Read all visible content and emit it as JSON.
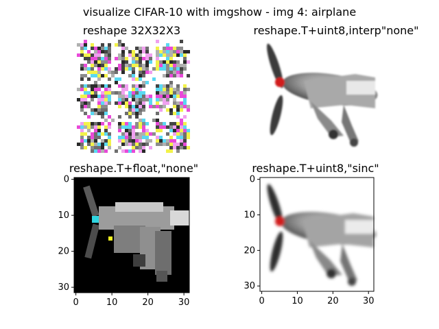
{
  "figure": {
    "suptitle": "visualize CIFAR-10 with imgshow - img 4: airplane"
  },
  "chart_data": [
    {
      "type": "image",
      "title": "reshape 32X32X3",
      "axes_visible": false,
      "description_grid": "3x3 tiled scrambled copies"
    },
    {
      "type": "image",
      "title": "reshape.T+uint8,interp\"none\"",
      "axes_visible": false
    },
    {
      "type": "image",
      "title": "reshape.T+float,\"none\"",
      "axes_visible": true,
      "xlim": [
        0,
        31
      ],
      "ylim": [
        31,
        0
      ],
      "xticks": [
        0,
        10,
        20,
        30
      ],
      "yticks": [
        0,
        10,
        20,
        30
      ],
      "background": "#000000"
    },
    {
      "type": "image",
      "title": "reshape.T+uint8,\"sinc\"",
      "axes_visible": true,
      "xlim": [
        0,
        31
      ],
      "ylim": [
        31,
        0
      ],
      "xticks": [
        0,
        10,
        20,
        30
      ],
      "yticks": [
        0,
        10,
        20,
        30
      ],
      "background": "#ffffff"
    }
  ]
}
